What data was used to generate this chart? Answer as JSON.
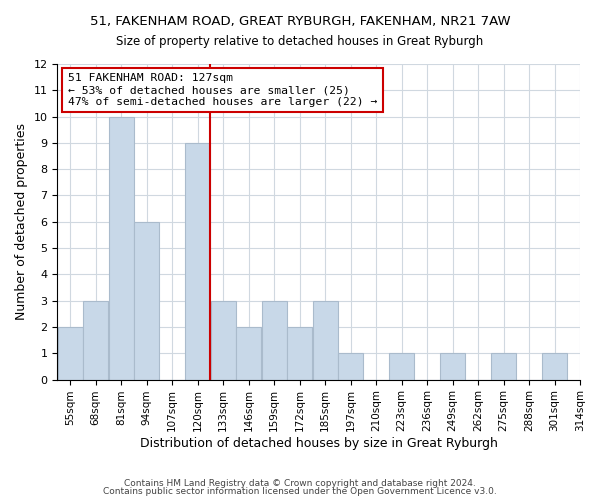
{
  "title1": "51, FAKENHAM ROAD, GREAT RYBURGH, FAKENHAM, NR21 7AW",
  "title2": "Size of property relative to detached houses in Great Ryburgh",
  "xlabel": "Distribution of detached houses by size in Great Ryburgh",
  "ylabel": "Number of detached properties",
  "bin_labels": [
    "55sqm",
    "68sqm",
    "81sqm",
    "94sqm",
    "107sqm",
    "120sqm",
    "133sqm",
    "146sqm",
    "159sqm",
    "172sqm",
    "185sqm",
    "197sqm",
    "210sqm",
    "223sqm",
    "236sqm",
    "249sqm",
    "262sqm",
    "275sqm",
    "288sqm",
    "301sqm",
    "314sqm"
  ],
  "bar_values": [
    2,
    3,
    10,
    6,
    0,
    9,
    3,
    2,
    3,
    2,
    3,
    1,
    0,
    1,
    0,
    1,
    0,
    1,
    0,
    1
  ],
  "bar_color": "#c8d8e8",
  "bar_edge_color": "#aabbcc",
  "annotation_title": "51 FAKENHAM ROAD: 127sqm",
  "annotation_line1": "← 53% of detached houses are smaller (25)",
  "annotation_line2": "47% of semi-detached houses are larger (22) →",
  "annotation_box_color": "#ffffff",
  "annotation_box_edge": "#cc0000",
  "red_line_color": "#cc0000",
  "ylim": [
    0,
    12
  ],
  "yticks": [
    0,
    1,
    2,
    3,
    4,
    5,
    6,
    7,
    8,
    9,
    10,
    11,
    12
  ],
  "footer1": "Contains HM Land Registry data © Crown copyright and database right 2024.",
  "footer2": "Contains public sector information licensed under the Open Government Licence v3.0."
}
